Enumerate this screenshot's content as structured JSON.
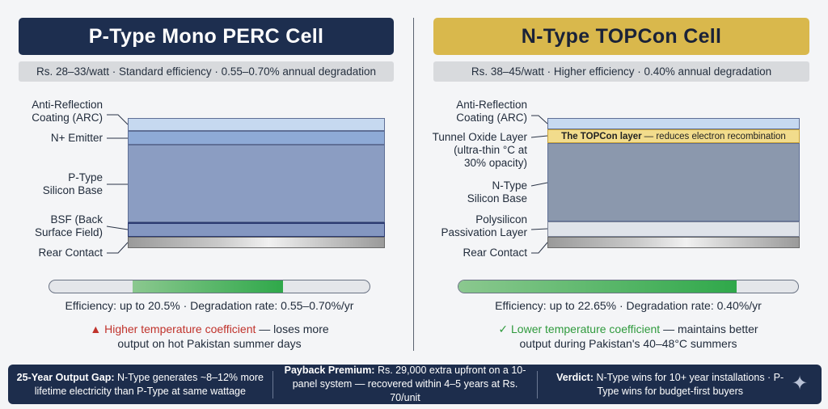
{
  "left": {
    "title": "P-Type Mono PERC Cell",
    "subtitle": "Rs. 28–33/watt · Standard efficiency · 0.55–0.70% annual degradation",
    "labels": {
      "arc1": "Anti-Reflection",
      "arc2": "Coating (ARC)",
      "emitter": "N+ Emitter",
      "base1": "P-Type",
      "base2": "Silicon Base",
      "bsf1": "BSF (Back",
      "bsf2": "Surface Field)",
      "rear": "Rear Contact"
    },
    "efficiency_bar": {
      "start": 0.26,
      "end": 0.73
    },
    "stats": "Efficiency: up to 20.5% · Degradation rate: 0.55–0.70%/yr",
    "note_mark": "▲",
    "note_highlight": "Higher temperature coefficient",
    "note_rest_1": " — loses more",
    "note_line2": "output on hot Pakistan summer days"
  },
  "right": {
    "title": "N-Type TOPCon Cell",
    "subtitle": "Rs. 38–45/watt · Higher efficiency · 0.40% annual degradation",
    "labels": {
      "arc1": "Anti-Reflection",
      "arc2": "Coating (ARC)",
      "tunnel1": "Tunnel Oxide Layer",
      "tunnel2": "(ultra-thin °C at",
      "tunnel3": "30% opacity)",
      "base1": "N-Type",
      "base2": "Silicon Base",
      "poly1": "Polysilicon",
      "poly2": "Passivation Layer",
      "rear": "Rear Contact"
    },
    "tunnel_bold": "The TOPCon layer",
    "tunnel_text": "— reduces electron recombination",
    "efficiency_bar": {
      "start": 0.0,
      "end": 0.82
    },
    "stats": "Efficiency: up to 22.65% · Degradation rate: 0.40%/yr",
    "note_mark": "✓",
    "note_highlight": "Lower temperature coefficient",
    "note_rest_1": " — maintains better",
    "note_line2": "output during Pakistan's 40–48°C summers"
  },
  "footer": [
    {
      "bold": "25-Year Output Gap:",
      "text": " N-Type generates ~8–12% more lifetime electricity than P-Type at same wattage"
    },
    {
      "bold": "Payback Premium:",
      "text": " Rs. 29,000 extra upfront on a 10-panel system — recovered within 4–5 years at Rs. 70/unit"
    },
    {
      "bold": "Verdict:",
      "text": " N-Type wins for 10+ year installations · P-Type wins for budget-first buyers"
    }
  ],
  "colors": {
    "left_title_bg": "#1d2e4f",
    "right_title_bg": "#d9b84c",
    "warn": "#c0322b",
    "ok": "#2f9a3d"
  },
  "icons": {
    "warning": "warning-triangle-icon",
    "check": "check-icon",
    "sparkle": "sparkle-icon"
  }
}
